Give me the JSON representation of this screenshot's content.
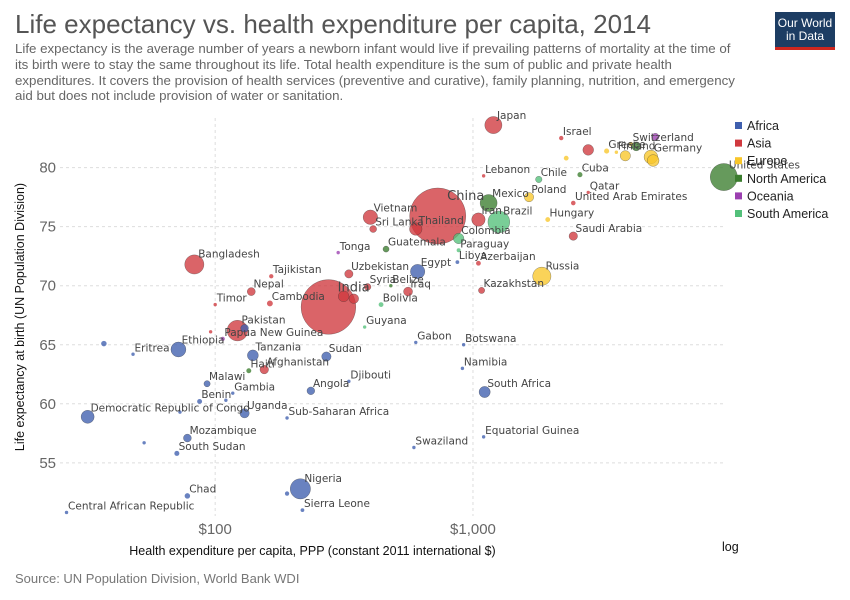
{
  "header": {
    "title": "Life expectancy vs. health expenditure per capita, 2014",
    "subtitle": "Life expectancy is the average number of years a newborn infant would live if prevailing patterns of mortality at the time of its birth were to stay the same throughout its life. Total health expenditure is the sum of public and private health expenditures. It covers the provision of health services (preventive and curative), family planning, nutrition, and emergency aid but does not include provision of water or sanitation.",
    "logo_line1": "Our World",
    "logo_line2": "in Data"
  },
  "footer": {
    "source": "Source: UN Population Division, World Bank WDI"
  },
  "colors": {
    "Africa": "#3f5fae",
    "Asia": "#d0393e",
    "Europe": "#f8c62a",
    "North America": "#3b7d2e",
    "Oceania": "#9b3fb0",
    "South America": "#53c07a"
  },
  "chart_data": {
    "type": "scatter",
    "xlabel": "Health expenditure per capita, PPP (constant 2011 international $)",
    "ylabel": "Life expectancy at birth (UN Population Division)",
    "x_scale": "log",
    "x_scale_label": "log",
    "x_ticks": [
      {
        "value": 100,
        "label": "$100"
      },
      {
        "value": 1000,
        "label": "$1,000"
      }
    ],
    "y_ticks": [
      55,
      60,
      65,
      70,
      75,
      80
    ],
    "xlim": [
      25,
      9500
    ],
    "ylim": [
      50.5,
      84.2
    ],
    "grid": true,
    "legend_position": "right",
    "legend": [
      "Africa",
      "Asia",
      "Europe",
      "North America",
      "Oceania",
      "South America"
    ],
    "points": [
      {
        "x": 1200,
        "y": 83.6,
        "region": "Asia",
        "pop": 127,
        "label": "Japan"
      },
      {
        "x": 2200,
        "y": 82.5,
        "region": "Asia",
        "pop": 8,
        "label": "Israel"
      },
      {
        "x": 4100,
        "y": 82.0,
        "region": "Europe",
        "pop": 8,
        "label": "Switzerland",
        "name_only": true
      },
      {
        "x": 5100,
        "y": 82.6,
        "region": "Oceania",
        "pop": 23,
        "label": "",
        "name_only": true
      },
      {
        "x": 3300,
        "y": 81.4,
        "region": "Europe",
        "pop": 11,
        "label": "Greece"
      },
      {
        "x": 3600,
        "y": 81.3,
        "region": "Europe",
        "pop": 5,
        "label": "Finland"
      },
      {
        "x": 4900,
        "y": 80.9,
        "region": "Europe",
        "pop": 81,
        "label": "Germany"
      },
      {
        "x": 5000,
        "y": 80.6,
        "region": "Europe",
        "pop": 60,
        "label": "",
        "name_only": true
      },
      {
        "x": 9400,
        "y": 79.2,
        "region": "North America",
        "pop": 320,
        "label": "United States"
      },
      {
        "x": 4300,
        "y": 81.8,
        "region": "North America",
        "pop": 35,
        "label": "",
        "name_only": true
      },
      {
        "x": 3900,
        "y": 81.0,
        "region": "Europe",
        "pop": 46,
        "label": "",
        "name_only": true
      },
      {
        "x": 2800,
        "y": 81.5,
        "region": "Asia",
        "pop": 50,
        "label": "",
        "name_only": true
      },
      {
        "x": 2300,
        "y": 80.8,
        "region": "Europe",
        "pop": 10,
        "label": "",
        "name_only": true
      },
      {
        "x": 1100,
        "y": 79.3,
        "region": "Asia",
        "pop": 4,
        "label": "Lebanon"
      },
      {
        "x": 1800,
        "y": 79.0,
        "region": "South America",
        "pop": 18,
        "label": "Chile"
      },
      {
        "x": 2600,
        "y": 79.4,
        "region": "North America",
        "pop": 11,
        "label": "Cuba"
      },
      {
        "x": 2800,
        "y": 77.9,
        "region": "Asia",
        "pop": 2,
        "label": "Qatar"
      },
      {
        "x": 2450,
        "y": 77.0,
        "region": "Asia",
        "pop": 9,
        "label": "United Arab Emirates"
      },
      {
        "x": 1650,
        "y": 77.5,
        "region": "Europe",
        "pop": 38,
        "label": "Poland"
      },
      {
        "x": 1150,
        "y": 77.0,
        "region": "North America",
        "pop": 125,
        "label": "Mexico"
      },
      {
        "x": 1950,
        "y": 75.6,
        "region": "Europe",
        "pop": 10,
        "label": "Hungary"
      },
      {
        "x": 1260,
        "y": 75.4,
        "region": "South America",
        "pop": 206,
        "label": "Brazil"
      },
      {
        "x": 1050,
        "y": 75.6,
        "region": "Asia",
        "pop": 78,
        "label": "Iran"
      },
      {
        "x": 2450,
        "y": 74.2,
        "region": "Asia",
        "pop": 31,
        "label": "Saudi Arabia"
      },
      {
        "x": 730,
        "y": 75.9,
        "region": "Asia",
        "pop": 1364,
        "label": "China",
        "big": true
      },
      {
        "x": 600,
        "y": 74.8,
        "region": "Asia",
        "pop": 68,
        "label": "Thailand"
      },
      {
        "x": 880,
        "y": 74.0,
        "region": "South America",
        "pop": 48,
        "label": "Colombia"
      },
      {
        "x": 400,
        "y": 75.8,
        "region": "Asia",
        "pop": 91,
        "label": "Vietnam"
      },
      {
        "x": 410,
        "y": 74.8,
        "region": "Asia",
        "pop": 21,
        "label": "Sri Lanka"
      },
      {
        "x": 460,
        "y": 73.1,
        "region": "North America",
        "pop": 16,
        "label": "Guatemala"
      },
      {
        "x": 880,
        "y": 73.0,
        "region": "South America",
        "pop": 7,
        "label": "Paraguay"
      },
      {
        "x": 870,
        "y": 72.0,
        "region": "Africa",
        "pop": 6,
        "label": "Libya"
      },
      {
        "x": 1050,
        "y": 71.9,
        "region": "Asia",
        "pop": 10,
        "label": "Azerbaijan"
      },
      {
        "x": 610,
        "y": 71.2,
        "region": "Africa",
        "pop": 90,
        "label": "Egypt"
      },
      {
        "x": 1850,
        "y": 70.8,
        "region": "Europe",
        "pop": 144,
        "label": "Russia"
      },
      {
        "x": 300,
        "y": 72.8,
        "region": "Oceania",
        "pop": 0.1,
        "label": "Tonga"
      },
      {
        "x": 330,
        "y": 71.0,
        "region": "Asia",
        "pop": 30,
        "label": "Uzbekistan"
      },
      {
        "x": 390,
        "y": 69.9,
        "region": "Asia",
        "pop": 20,
        "label": "Syria"
      },
      {
        "x": 480,
        "y": 70.0,
        "region": "North America",
        "pop": 0.4,
        "label": "Belize"
      },
      {
        "x": 560,
        "y": 69.5,
        "region": "Asia",
        "pop": 35,
        "label": "Iraq"
      },
      {
        "x": 1080,
        "y": 69.6,
        "region": "Asia",
        "pop": 17,
        "label": "Kazakhstan"
      },
      {
        "x": 165,
        "y": 70.8,
        "region": "Asia",
        "pop": 8,
        "label": "Tajikistan"
      },
      {
        "x": 138,
        "y": 69.5,
        "region": "Asia",
        "pop": 28,
        "label": "Nepal"
      },
      {
        "x": 83,
        "y": 71.8,
        "region": "Asia",
        "pop": 159,
        "label": "Bangladesh"
      },
      {
        "x": 100,
        "y": 68.4,
        "region": "Asia",
        "pop": 1.2,
        "label": "Timor"
      },
      {
        "x": 163,
        "y": 68.5,
        "region": "Asia",
        "pop": 15,
        "label": "Cambodia"
      },
      {
        "x": 275,
        "y": 68.2,
        "region": "Asia",
        "pop": 1295,
        "label": "India",
        "big": true
      },
      {
        "x": 315,
        "y": 69.1,
        "region": "Asia",
        "pop": 51,
        "label": "",
        "name_only": true
      },
      {
        "x": 345,
        "y": 68.9,
        "region": "Asia",
        "pop": 40,
        "label": "",
        "name_only": true
      },
      {
        "x": 440,
        "y": 68.4,
        "region": "South America",
        "pop": 10,
        "label": "Bolivia"
      },
      {
        "x": 380,
        "y": 66.5,
        "region": "South America",
        "pop": 0.8,
        "label": "Guyana"
      },
      {
        "x": 122,
        "y": 66.2,
        "region": "Asia",
        "pop": 185,
        "label": "Pakistan"
      },
      {
        "x": 107,
        "y": 65.5,
        "region": "Oceania",
        "pop": 7.5,
        "label": "Papua New Guinea"
      },
      {
        "x": 96,
        "y": 66.1,
        "region": "Asia",
        "pop": 5,
        "label": "",
        "name_only": true
      },
      {
        "x": 130,
        "y": 66.4,
        "region": "Africa",
        "pop": 26,
        "label": "",
        "name_only": true
      },
      {
        "x": 600,
        "y": 65.2,
        "region": "Africa",
        "pop": 1.7,
        "label": "Gabon"
      },
      {
        "x": 920,
        "y": 65.0,
        "region": "Africa",
        "pop": 2.2,
        "label": "Botswana"
      },
      {
        "x": 72,
        "y": 64.6,
        "region": "Africa",
        "pop": 97,
        "label": "Ethiopia"
      },
      {
        "x": 48,
        "y": 64.2,
        "region": "Africa",
        "pop": 5,
        "label": "Eritrea"
      },
      {
        "x": 37,
        "y": 65.1,
        "region": "Africa",
        "pop": 13,
        "label": ""
      },
      {
        "x": 140,
        "y": 64.1,
        "region": "Africa",
        "pop": 52,
        "label": "Tanzania"
      },
      {
        "x": 270,
        "y": 64.0,
        "region": "Africa",
        "pop": 38,
        "label": "Sudan"
      },
      {
        "x": 910,
        "y": 63.0,
        "region": "Africa",
        "pop": 2.4,
        "label": "Namibia"
      },
      {
        "x": 135,
        "y": 62.8,
        "region": "North America",
        "pop": 10.5,
        "label": "Haiti"
      },
      {
        "x": 155,
        "y": 62.9,
        "region": "Asia",
        "pop": 32,
        "label": "Afghanistan"
      },
      {
        "x": 330,
        "y": 61.9,
        "region": "Africa",
        "pop": 0.9,
        "label": "Djibouti"
      },
      {
        "x": 93,
        "y": 61.7,
        "region": "Africa",
        "pop": 17,
        "label": "Malawi"
      },
      {
        "x": 235,
        "y": 61.1,
        "region": "Africa",
        "pop": 26,
        "label": "Angola"
      },
      {
        "x": 117,
        "y": 60.9,
        "region": "Africa",
        "pop": 2,
        "label": "Gambia"
      },
      {
        "x": 87,
        "y": 60.2,
        "region": "Africa",
        "pop": 10.5,
        "label": "Benin"
      },
      {
        "x": 110,
        "y": 60.3,
        "region": "Africa",
        "pop": 3,
        "label": "",
        "name_only": true
      },
      {
        "x": 1110,
        "y": 61.0,
        "region": "Africa",
        "pop": 54,
        "label": "South Africa"
      },
      {
        "x": 130,
        "y": 59.2,
        "region": "Africa",
        "pop": 38,
        "label": "Uganda"
      },
      {
        "x": 190,
        "y": 58.8,
        "region": "Africa",
        "pop": 1,
        "label": "Sub-Saharan Africa"
      },
      {
        "x": 32,
        "y": 58.9,
        "region": "Africa",
        "pop": 74,
        "label": "Democratic Republic of Congo"
      },
      {
        "x": 73,
        "y": 59.3,
        "region": "Africa",
        "pop": 2,
        "label": "",
        "name_only": true
      },
      {
        "x": 78,
        "y": 57.1,
        "region": "Africa",
        "pop": 27,
        "label": "Mozambique"
      },
      {
        "x": 71,
        "y": 55.8,
        "region": "Africa",
        "pop": 11,
        "label": "South Sudan"
      },
      {
        "x": 53,
        "y": 56.7,
        "region": "Africa",
        "pop": 1,
        "label": "",
        "name_only": true
      },
      {
        "x": 1100,
        "y": 57.2,
        "region": "Africa",
        "pop": 0.8,
        "label": "Equatorial Guinea"
      },
      {
        "x": 590,
        "y": 56.3,
        "region": "Africa",
        "pop": 1.3,
        "label": "Swaziland"
      },
      {
        "x": 78,
        "y": 52.2,
        "region": "Africa",
        "pop": 13,
        "label": "Chad"
      },
      {
        "x": 214,
        "y": 52.8,
        "region": "Africa",
        "pop": 178,
        "label": "Nigeria"
      },
      {
        "x": 190,
        "y": 52.4,
        "region": "Africa",
        "pop": 8,
        "label": "",
        "name_only": true
      },
      {
        "x": 218,
        "y": 51.0,
        "region": "Africa",
        "pop": 6,
        "label": "Sierra Leone"
      },
      {
        "x": 26.5,
        "y": 50.8,
        "region": "Africa",
        "pop": 4.5,
        "label": "Central African Republic"
      }
    ]
  }
}
